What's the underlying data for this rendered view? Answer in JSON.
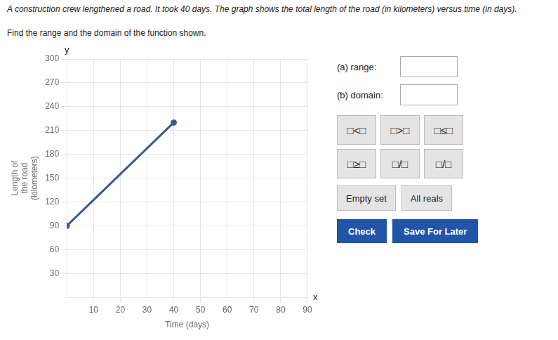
{
  "chart_data": {
    "type": "line",
    "title": "A construction crew lengthened a road. It took 40 days. The graph shows the total length of the road (in kilometers) versus time (in days).",
    "subtitle": "Find the range and the domain of the function shown.",
    "x_label": "Time (days)",
    "y_label": [
      "Length of",
      "the road",
      "(kilometers)"
    ],
    "x": [
      0,
      40
    ],
    "values": [
      90,
      220
    ],
    "color": "#3a5a8c",
    "marker": "circle",
    "xlim": [
      0,
      90
    ],
    "ylim": [
      0,
      300
    ],
    "xticks": [
      10,
      20,
      30,
      40,
      50,
      60,
      70,
      80,
      90
    ],
    "yticks": [
      30,
      60,
      90,
      120,
      150,
      180,
      210,
      240,
      270,
      300
    ],
    "grid": true,
    "annotations": {
      "x_letter": "x",
      "y_letter": "y",
      "range_label": "(a) range:",
      "domain_label": "(b) domain:",
      "buttons": [
        "□<□",
        "□>□",
        "□≤□",
        "□≥□",
        "□/□",
        "□/□"
      ],
      "bottom_buttons": [
        "Empty set",
        "All reals"
      ],
      "check_button": "Check",
      "save_button": "Save For Later"
    }
  }
}
